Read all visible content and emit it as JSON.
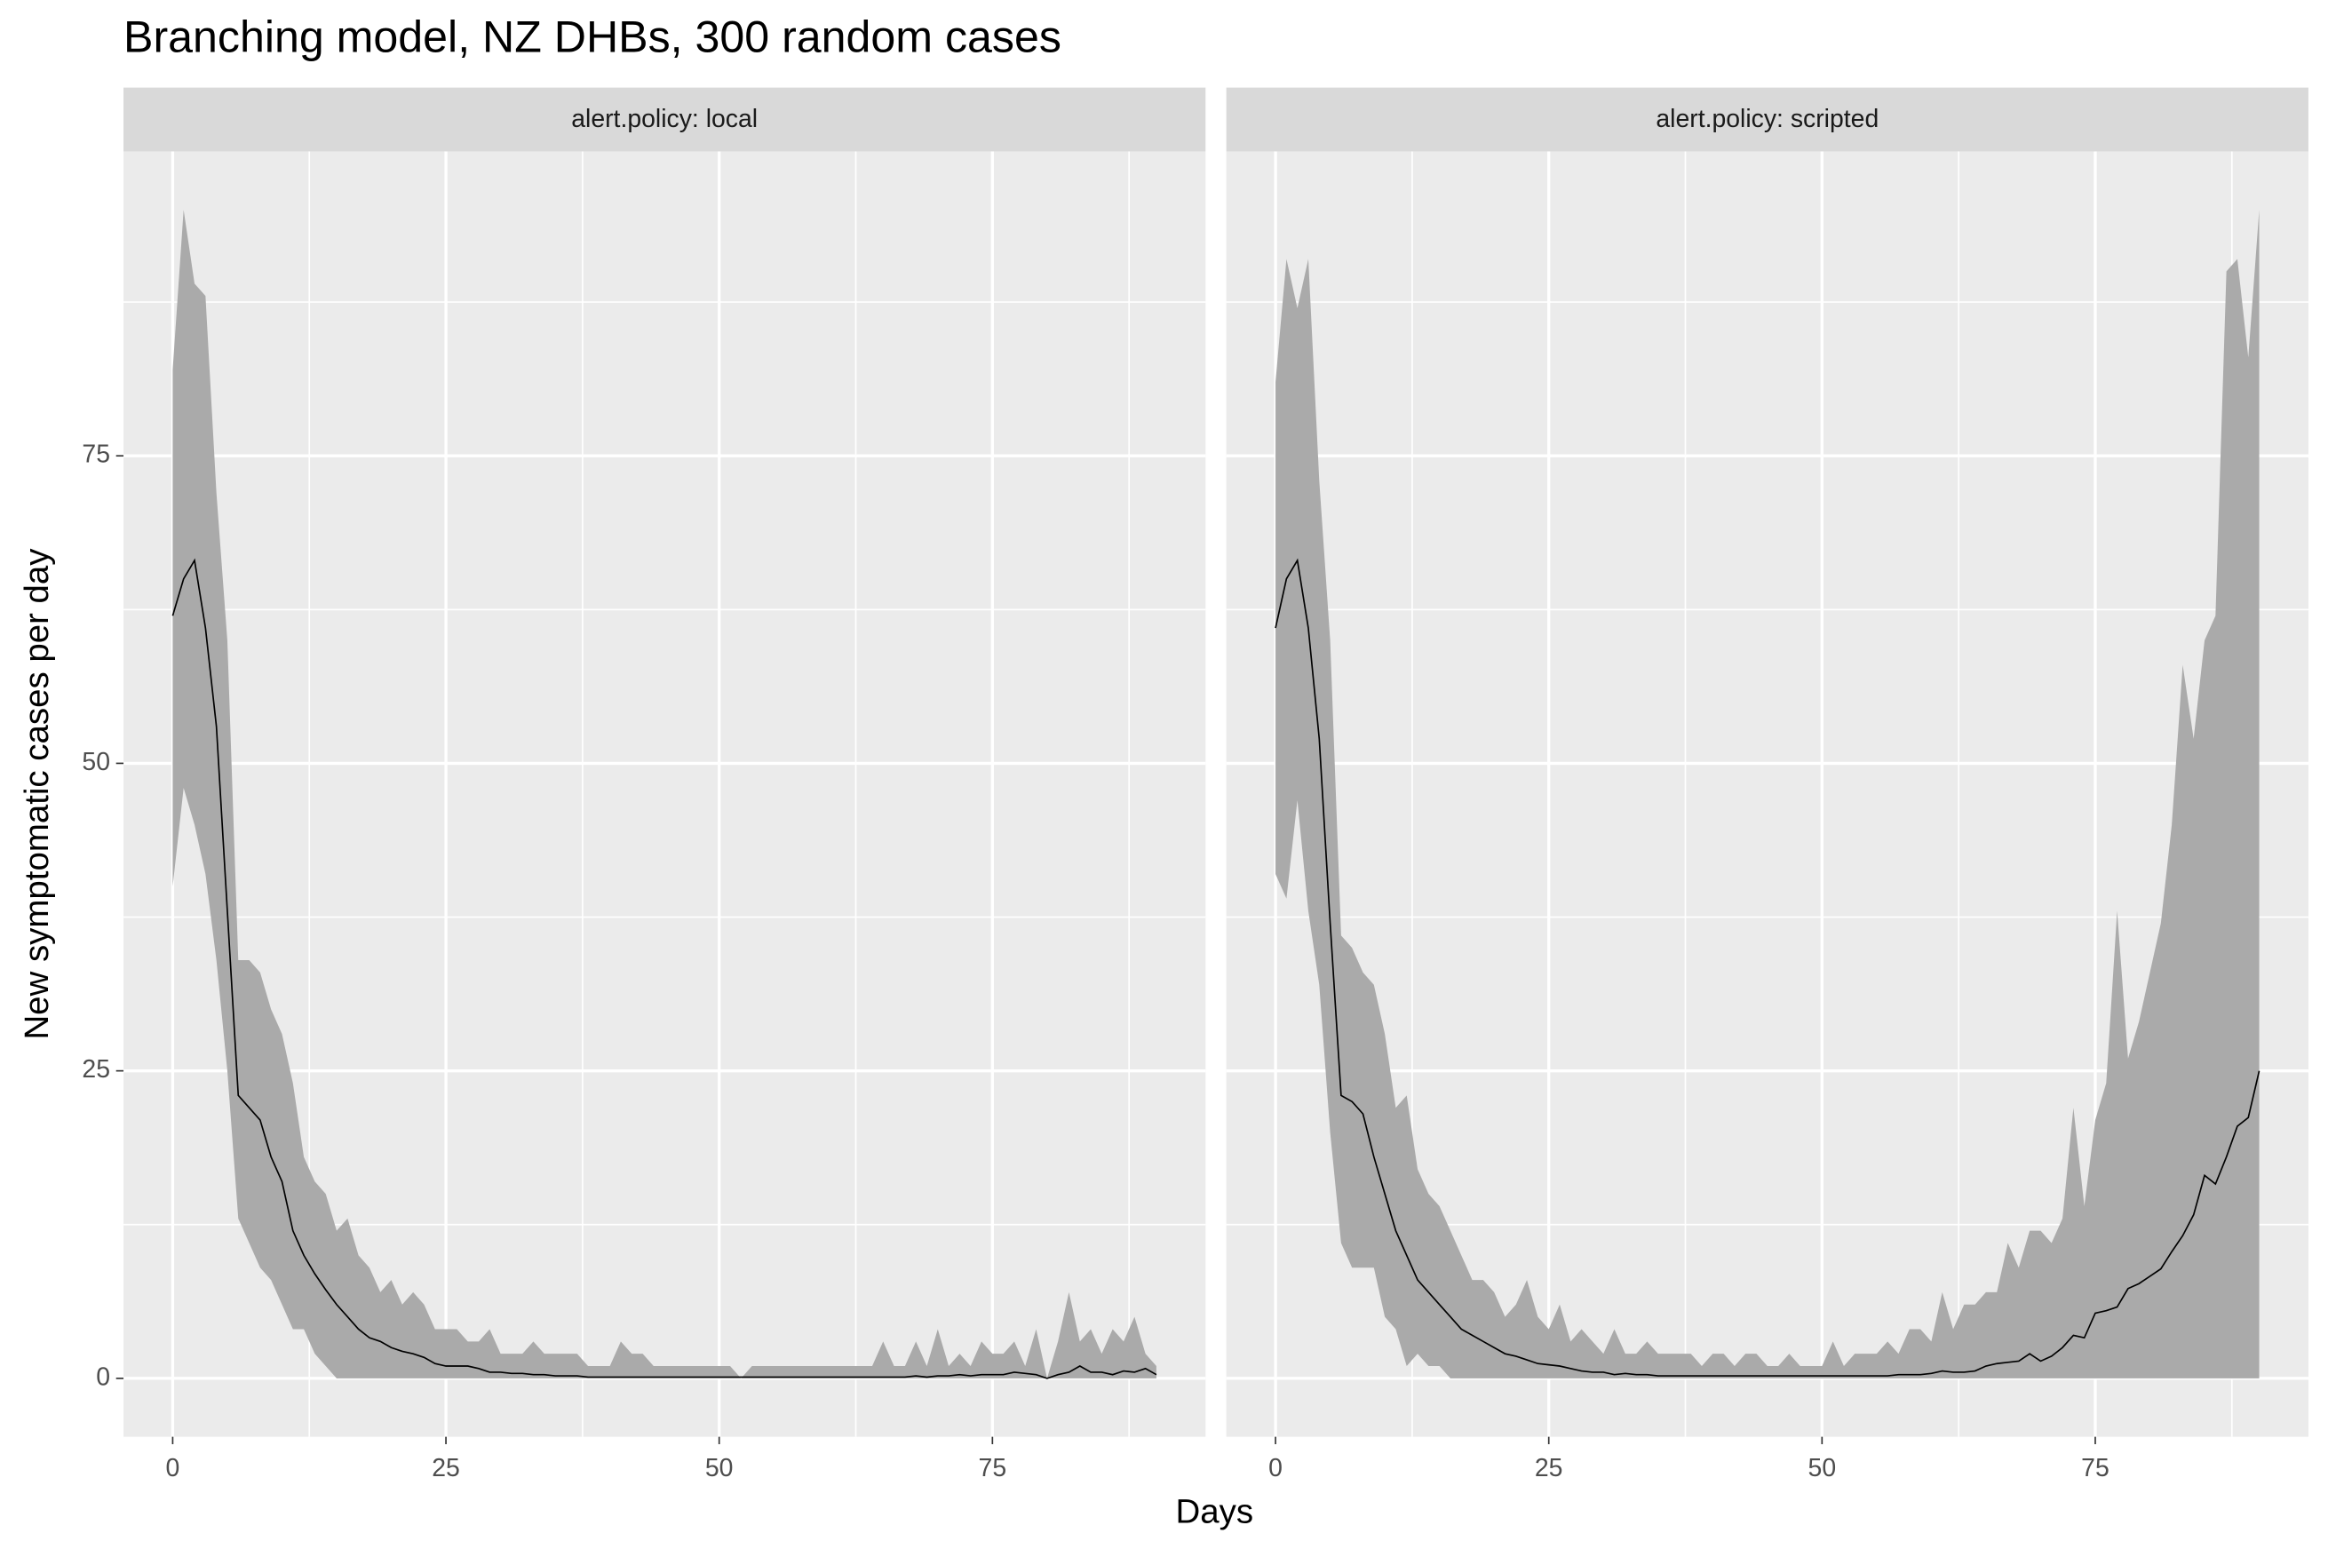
{
  "chart_data": {
    "type": "ribbon",
    "title": "Branching model, NZ DHBs, 300 random cases",
    "x_label": "Days",
    "y_label": "New symptomatic cases per day",
    "xlim": [
      -4.5,
      94.5
    ],
    "ylim": [
      -4.75,
      99.75
    ],
    "xticks": [
      0,
      25,
      50,
      75
    ],
    "yticks": [
      0,
      25,
      50,
      75
    ],
    "x_minor_breaks": [
      12.5,
      37.5,
      62.5,
      87.5
    ],
    "y_minor_breaks": [
      12.5,
      37.5,
      62.5,
      87.5
    ],
    "grid": true,
    "ribbon_color": "#aaaaaa",
    "line_color": "#000000",
    "x": [
      0,
      1,
      2,
      3,
      4,
      5,
      6,
      7,
      8,
      9,
      10,
      11,
      12,
      13,
      14,
      15,
      16,
      17,
      18,
      19,
      20,
      21,
      22,
      23,
      24,
      25,
      26,
      27,
      28,
      29,
      30,
      31,
      32,
      33,
      34,
      35,
      36,
      37,
      38,
      39,
      40,
      41,
      42,
      43,
      44,
      45,
      46,
      47,
      48,
      49,
      50,
      51,
      52,
      53,
      54,
      55,
      56,
      57,
      58,
      59,
      60,
      61,
      62,
      63,
      64,
      65,
      66,
      67,
      68,
      69,
      70,
      71,
      72,
      73,
      74,
      75,
      76,
      77,
      78,
      79,
      80,
      81,
      82,
      83,
      84,
      85,
      86,
      87,
      88,
      89,
      90
    ],
    "facets": [
      {
        "label": "alert.policy: local",
        "lower": [
          40,
          48,
          45,
          41,
          34,
          25,
          13,
          11,
          9,
          8,
          6,
          4,
          4,
          2,
          1,
          0,
          0,
          0,
          0,
          0,
          0,
          0,
          0,
          0,
          0,
          0,
          0,
          0,
          0,
          0,
          0,
          0,
          0,
          0,
          0,
          0,
          0,
          0,
          0,
          0,
          0,
          0,
          0,
          0,
          0,
          0,
          0,
          0,
          0,
          0,
          0,
          0,
          0,
          0,
          0,
          0,
          0,
          0,
          0,
          0,
          0,
          0,
          0,
          0,
          0,
          0,
          0,
          0,
          0,
          0,
          0,
          0,
          0,
          0,
          0,
          0,
          0,
          0,
          0,
          0,
          0,
          0,
          0,
          0,
          0,
          0,
          0,
          0,
          0,
          0,
          0
        ],
        "median": [
          62,
          65,
          66.5,
          61,
          53,
          38,
          23,
          22,
          21,
          18,
          16,
          12,
          10,
          8.5,
          7.2,
          6,
          5,
          4,
          3.3,
          3,
          2.5,
          2.2,
          2,
          1.7,
          1.2,
          1,
          1,
          1,
          0.8,
          0.5,
          0.5,
          0.4,
          0.4,
          0.3,
          0.3,
          0.2,
          0.2,
          0.2,
          0.1,
          0.1,
          0.1,
          0.1,
          0.1,
          0.1,
          0.1,
          0.1,
          0.1,
          0.1,
          0.1,
          0.1,
          0.1,
          0.1,
          0.1,
          0.1,
          0.1,
          0.1,
          0.1,
          0.1,
          0.1,
          0.1,
          0.1,
          0.1,
          0.1,
          0.1,
          0.1,
          0.1,
          0.1,
          0.1,
          0.2,
          0.1,
          0.2,
          0.2,
          0.3,
          0.2,
          0.3,
          0.3,
          0.3,
          0.5,
          0.4,
          0.3,
          0,
          0.3,
          0.5,
          1,
          0.5,
          0.5,
          0.3,
          0.6,
          0.5,
          0.8,
          0.3
        ],
        "upper": [
          82,
          95,
          89,
          88,
          72,
          60,
          34,
          34,
          33,
          30,
          28,
          24,
          18,
          16,
          15,
          12,
          13,
          10,
          9,
          7,
          8,
          6,
          7,
          6,
          4,
          4,
          4,
          3,
          3,
          4,
          2,
          2,
          2,
          3,
          2,
          2,
          2,
          2,
          1,
          1,
          1,
          3,
          2,
          2,
          1,
          1,
          1,
          1,
          1,
          1,
          1,
          1,
          0,
          1,
          1,
          1,
          1,
          1,
          1,
          1,
          1,
          1,
          1,
          1,
          1,
          3,
          1,
          1,
          3,
          1,
          4,
          1,
          2,
          1,
          3,
          2,
          2,
          3,
          1,
          4,
          0,
          3,
          7,
          3,
          4,
          2,
          4,
          3,
          5,
          2,
          1
        ]
      },
      {
        "label": "alert.policy: scripted",
        "lower": [
          41,
          39,
          47,
          38,
          32,
          20,
          11,
          9,
          9,
          9,
          5,
          4,
          1,
          2,
          1,
          1,
          0,
          0,
          0,
          0,
          0,
          0,
          0,
          0,
          0,
          0,
          0,
          0,
          0,
          0,
          0,
          0,
          0,
          0,
          0,
          0,
          0,
          0,
          0,
          0,
          0,
          0,
          0,
          0,
          0,
          0,
          0,
          0,
          0,
          0,
          0,
          0,
          0,
          0,
          0,
          0,
          0,
          0,
          0,
          0,
          0,
          0,
          0,
          0,
          0,
          0,
          0,
          0,
          0,
          0,
          0,
          0,
          0,
          0,
          0,
          0,
          0,
          0,
          0,
          0,
          0,
          0,
          0,
          0,
          0,
          0,
          0,
          0,
          0,
          0,
          0
        ],
        "median": [
          61,
          65,
          66.5,
          61,
          52,
          37,
          23,
          22.5,
          21.5,
          18,
          15,
          12,
          10,
          8,
          7,
          6,
          5,
          4,
          3.5,
          3,
          2.5,
          2,
          1.8,
          1.5,
          1.2,
          1.1,
          1,
          0.8,
          0.6,
          0.5,
          0.5,
          0.3,
          0.4,
          0.3,
          0.3,
          0.2,
          0.2,
          0.2,
          0.2,
          0.2,
          0.2,
          0.2,
          0.2,
          0.2,
          0.2,
          0.2,
          0.2,
          0.2,
          0.2,
          0.2,
          0.2,
          0.2,
          0.2,
          0.2,
          0.2,
          0.2,
          0.2,
          0.3,
          0.3,
          0.3,
          0.4,
          0.6,
          0.5,
          0.5,
          0.6,
          1,
          1.2,
          1.3,
          1.4,
          2,
          1.4,
          1.8,
          2.5,
          3.5,
          3.3,
          5.3,
          5.5,
          5.8,
          7.3,
          7.7,
          8.3,
          8.9,
          10.3,
          11.6,
          13.3,
          16.5,
          15.8,
          18,
          20.5,
          21.2,
          25
        ],
        "upper": [
          81,
          91,
          87,
          91,
          73,
          60,
          36,
          35,
          33,
          32,
          28,
          22,
          23,
          17,
          15,
          14,
          12,
          10,
          8,
          8,
          7,
          5,
          6,
          8,
          5,
          4,
          6,
          3,
          4,
          3,
          2,
          4,
          2,
          2,
          3,
          2,
          2,
          2,
          2,
          1,
          2,
          2,
          1,
          2,
          2,
          1,
          1,
          2,
          1,
          1,
          1,
          3,
          1,
          2,
          2,
          2,
          3,
          2,
          4,
          4,
          3,
          7,
          4,
          6,
          6,
          7,
          7,
          11,
          9,
          12,
          12,
          11,
          13,
          22,
          14,
          21,
          24,
          38,
          26,
          29,
          33,
          37,
          45,
          58,
          52,
          60,
          62,
          90,
          91,
          83,
          95
        ]
      }
    ]
  }
}
